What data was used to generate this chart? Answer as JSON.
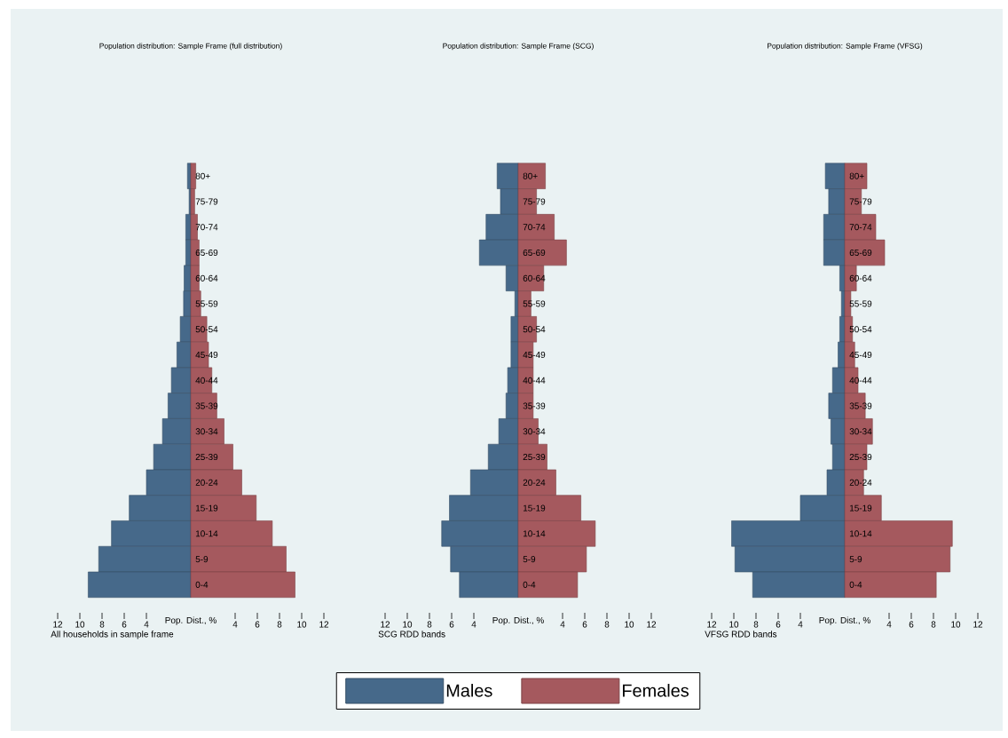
{
  "chart_data": [
    {
      "type": "bar",
      "orientation": "horizontal",
      "stacked": true,
      "title": "Population distribution: Sample Frame (full distribution)",
      "xlabel": "Pop. Dist., %",
      "annotations": [
        "All households in sample frame"
      ],
      "categories": [
        "80+",
        "75-79",
        "70-74",
        "65-69",
        "60-64",
        "55-59",
        "50-54",
        "45-49",
        "40-44",
        "35-39",
        "30-34",
        "25-39",
        "20-24",
        "15-19",
        "10-14",
        "5-9",
        "0-4"
      ],
      "series": [
        {
          "color": "#46698a",
          "values": [
            -0.3,
            -0.15,
            -0.45,
            -0.45,
            -0.6,
            -0.65,
            -0.95,
            -1.25,
            -1.75,
            -2.05,
            -2.55,
            -3.35,
            -4.0,
            -5.55,
            -7.15,
            -8.3,
            -9.25
          ]
        },
        {
          "color": "#a5595e",
          "values": [
            0.45,
            0.35,
            0.6,
            0.75,
            0.75,
            0.9,
            1.45,
            1.6,
            1.9,
            2.35,
            3.0,
            3.8,
            4.6,
            5.9,
            7.35,
            8.6,
            9.4
          ]
        }
      ],
      "xlim": [
        -12,
        12
      ],
      "xticks": [
        {
          "value": -12,
          "label": "12"
        },
        {
          "value": -10,
          "label": "10"
        },
        {
          "value": -8,
          "label": "8"
        },
        {
          "value": -6,
          "label": "6"
        },
        {
          "value": -4,
          "label": "4"
        },
        4,
        6,
        8,
        10,
        12
      ]
    },
    {
      "type": "bar",
      "orientation": "horizontal",
      "stacked": true,
      "title": "Population distribution: Sample Frame (SCG)",
      "xlabel": "Pop. Dist., %",
      "annotations": [
        "SCG RDD bands"
      ],
      "legend": "bottom",
      "categories": [
        "80+",
        "75-79",
        "70-74",
        "65-69",
        "60-64",
        "55-59",
        "50-54",
        "45-49",
        "40-44",
        "35-39",
        "30-34",
        "25-39",
        "20-24",
        "15-19",
        "10-14",
        "5-9",
        "0-4"
      ],
      "series": [
        {
          "name": "Males",
          "color": "#46698a",
          "values": [
            -1.9,
            -1.6,
            -2.9,
            -3.5,
            -1.1,
            -0.3,
            -0.65,
            -0.65,
            -0.95,
            -1.1,
            -1.75,
            -2.7,
            -4.3,
            -6.2,
            -6.9,
            -6.1,
            -5.3
          ]
        },
        {
          "name": "Females",
          "color": "#a5595e",
          "values": [
            2.45,
            1.65,
            3.25,
            4.35,
            2.3,
            1.15,
            1.65,
            1.35,
            1.35,
            1.35,
            1.8,
            2.6,
            3.4,
            5.65,
            6.95,
            6.15,
            5.35
          ]
        }
      ],
      "xlim": [
        -12,
        12
      ],
      "xticks": [
        {
          "value": -12,
          "label": "12"
        },
        {
          "value": -10,
          "label": "10"
        },
        {
          "value": -8,
          "label": "8"
        },
        {
          "value": -6,
          "label": "6"
        },
        {
          "value": -4,
          "label": "4"
        },
        4,
        6,
        8,
        10,
        12
      ]
    },
    {
      "type": "bar",
      "orientation": "horizontal",
      "stacked": true,
      "title": "Population distribution: Sample Frame (VFSG)",
      "xlabel": "Pop. Dist., %",
      "annotations": [
        "VFSG RDD bands"
      ],
      "categories": [
        "80+",
        "75-79",
        "70-74",
        "65-69",
        "60-64",
        "55-59",
        "50-54",
        "45-49",
        "40-44",
        "35-39",
        "30-34",
        "25-39",
        "20-24",
        "15-19",
        "10-14",
        "5-9",
        "0-4"
      ],
      "series": [
        {
          "color": "#46698a",
          "values": [
            -1.75,
            -1.45,
            -1.9,
            -1.9,
            -0.45,
            -0.3,
            -0.45,
            -0.6,
            -1.1,
            -1.45,
            -1.25,
            -1.1,
            -1.6,
            -4.0,
            -10.2,
            -9.9,
            -8.3
          ]
        },
        {
          "color": "#a5595e",
          "values": [
            2.0,
            1.5,
            2.8,
            3.6,
            1.05,
            0.55,
            0.7,
            0.9,
            1.2,
            1.85,
            2.5,
            2.0,
            1.7,
            3.3,
            9.7,
            9.5,
            8.25
          ]
        }
      ],
      "xlim": [
        -12,
        12
      ],
      "xticks": [
        {
          "value": -12,
          "label": "12"
        },
        {
          "value": -10,
          "label": "10"
        },
        {
          "value": -8,
          "label": "8"
        },
        {
          "value": -6,
          "label": "6"
        },
        {
          "value": -4,
          "label": "4"
        },
        4,
        6,
        8,
        10,
        12
      ]
    }
  ]
}
